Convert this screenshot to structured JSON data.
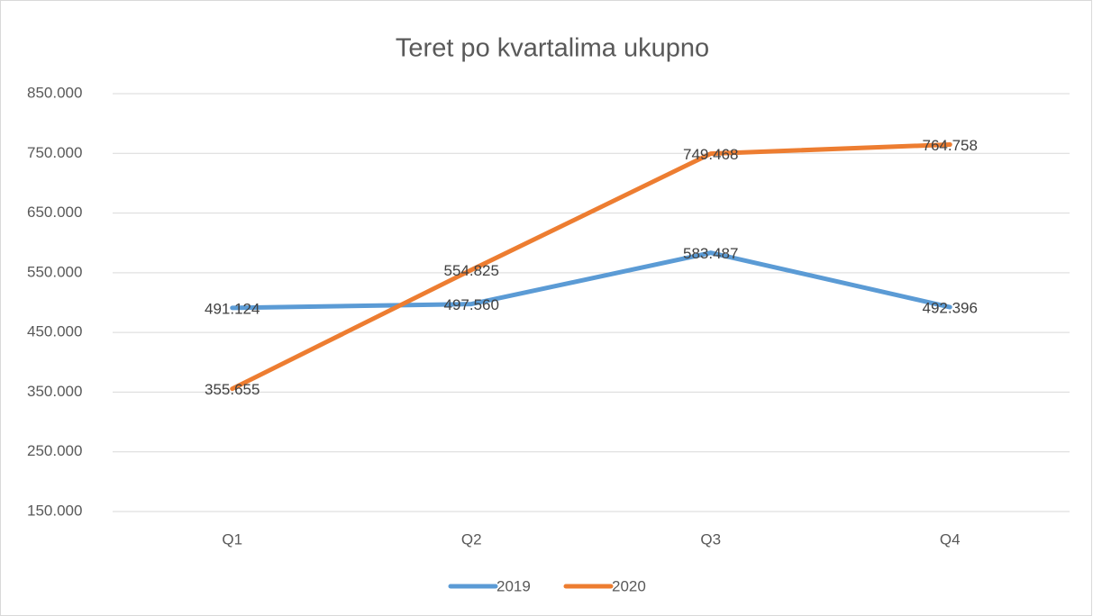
{
  "chart_data": {
    "type": "line",
    "title": "Teret po kvartalima ukupno",
    "categories": [
      "Q1",
      "Q2",
      "Q3",
      "Q4"
    ],
    "series": [
      {
        "name": "2019",
        "color": "#5b9bd5",
        "values": [
          491124,
          497560,
          583487,
          492396
        ],
        "value_labels": [
          "491.124",
          "497.560",
          "583.487",
          "492.396"
        ]
      },
      {
        "name": "2020",
        "color": "#ed7d31",
        "values": [
          355655,
          554825,
          749468,
          764758
        ],
        "value_labels": [
          "355.655",
          "554.825",
          "749.468",
          "764.758"
        ]
      }
    ],
    "ylim": [
      150000,
      850000
    ],
    "yticks": [
      {
        "value": 150000,
        "label": "150.000"
      },
      {
        "value": 250000,
        "label": "250.000"
      },
      {
        "value": 350000,
        "label": "350.000"
      },
      {
        "value": 450000,
        "label": "450.000"
      },
      {
        "value": 550000,
        "label": "550.000"
      },
      {
        "value": 650000,
        "label": "650.000"
      },
      {
        "value": 750000,
        "label": "750.000"
      },
      {
        "value": 850000,
        "label": "850.000"
      }
    ],
    "grid": true,
    "legend": "bottom"
  }
}
